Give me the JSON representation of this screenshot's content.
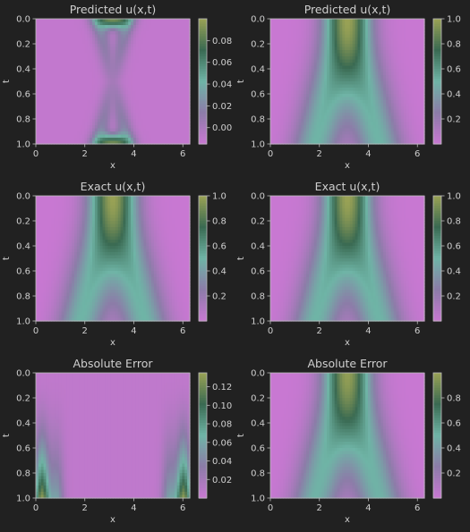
{
  "figure": {
    "background": "#212121",
    "text_color": "#cfcfcf"
  },
  "colormap": [
    "#c878d2",
    "#8c7ca8",
    "#6fb4a6",
    "#3a6a52",
    "#9aa255"
  ],
  "chart_data": [
    {
      "type": "heatmap",
      "title": "Predicted u(x,t)",
      "xlabel": "x",
      "ylabel": "t",
      "xlim": [
        0,
        6.2832
      ],
      "ylim": [
        0,
        1.0
      ],
      "y_inverted": true,
      "xticks": [
        "0",
        "2",
        "4",
        "6"
      ],
      "xtick_values": [
        0,
        2,
        4,
        6
      ],
      "yticks": [
        "0.0",
        "0.2",
        "0.4",
        "0.6",
        "0.8",
        "1.0"
      ],
      "ytick_values": [
        0,
        0.2,
        0.4,
        0.6,
        0.8,
        1.0
      ],
      "colorbar": {
        "vmin": -0.015,
        "vmax": 0.1,
        "ticks": [
          "0.00",
          "0.02",
          "0.04",
          "0.06",
          "0.08"
        ],
        "tick_values": [
          0,
          0.02,
          0.04,
          0.06,
          0.08
        ]
      },
      "field": "predicted_small"
    },
    {
      "type": "heatmap",
      "title": "Predicted u(x,t)",
      "xlabel": "x",
      "ylabel": "t",
      "xlim": [
        0,
        6.2832
      ],
      "ylim": [
        0,
        1.0
      ],
      "y_inverted": true,
      "xticks": [
        "0",
        "2",
        "4",
        "6"
      ],
      "xtick_values": [
        0,
        2,
        4,
        6
      ],
      "yticks": [
        "0.0",
        "0.2",
        "0.4",
        "0.6",
        "0.8",
        "1.0"
      ],
      "ytick_values": [
        0,
        0.2,
        0.4,
        0.6,
        0.8,
        1.0
      ],
      "colorbar": {
        "vmin": 0.0,
        "vmax": 1.0,
        "ticks": [
          "0.2",
          "0.4",
          "0.6",
          "0.8",
          "1.0"
        ],
        "tick_values": [
          0.2,
          0.4,
          0.6,
          0.8,
          1.0
        ]
      },
      "field": "gaussian_split"
    },
    {
      "type": "heatmap",
      "title": "Exact u(x,t)",
      "xlabel": "x",
      "ylabel": "t",
      "xlim": [
        0,
        6.2832
      ],
      "ylim": [
        0,
        1.0
      ],
      "y_inverted": true,
      "xticks": [
        "0",
        "2",
        "4",
        "6"
      ],
      "xtick_values": [
        0,
        2,
        4,
        6
      ],
      "yticks": [
        "0.0",
        "0.2",
        "0.4",
        "0.6",
        "0.8",
        "1.0"
      ],
      "ytick_values": [
        0,
        0.2,
        0.4,
        0.6,
        0.8,
        1.0
      ],
      "colorbar": {
        "vmin": 0.0,
        "vmax": 1.0,
        "ticks": [
          "0.2",
          "0.4",
          "0.6",
          "0.8",
          "1.0"
        ],
        "tick_values": [
          0.2,
          0.4,
          0.6,
          0.8,
          1.0
        ]
      },
      "field": "gaussian_split"
    },
    {
      "type": "heatmap",
      "title": "Exact u(x,t)",
      "xlabel": "x",
      "ylabel": "t",
      "xlim": [
        0,
        6.2832
      ],
      "ylim": [
        0,
        1.0
      ],
      "y_inverted": true,
      "xticks": [
        "0",
        "2",
        "4",
        "6"
      ],
      "xtick_values": [
        0,
        2,
        4,
        6
      ],
      "yticks": [
        "0.0",
        "0.2",
        "0.4",
        "0.6",
        "0.8",
        "1.0"
      ],
      "ytick_values": [
        0,
        0.2,
        0.4,
        0.6,
        0.8,
        1.0
      ],
      "colorbar": {
        "vmin": 0.0,
        "vmax": 1.0,
        "ticks": [
          "0.2",
          "0.4",
          "0.6",
          "0.8",
          "1.0"
        ],
        "tick_values": [
          0.2,
          0.4,
          0.6,
          0.8,
          1.0
        ]
      },
      "field": "gaussian_split"
    },
    {
      "type": "heatmap",
      "title": "Absolute Error",
      "xlabel": "x",
      "ylabel": "t",
      "xlim": [
        0,
        6.2832
      ],
      "ylim": [
        0,
        1.0
      ],
      "y_inverted": true,
      "xticks": [
        "0",
        "2",
        "4",
        "6"
      ],
      "xtick_values": [
        0,
        2,
        4,
        6
      ],
      "yticks": [
        "0.0",
        "0.2",
        "0.4",
        "0.6",
        "0.8",
        "1.0"
      ],
      "ytick_values": [
        0,
        0.2,
        0.4,
        0.6,
        0.8,
        1.0
      ],
      "colorbar": {
        "vmin": 0.0,
        "vmax": 0.135,
        "ticks": [
          "0.02",
          "0.04",
          "0.06",
          "0.08",
          "0.10",
          "0.12"
        ],
        "tick_values": [
          0.02,
          0.04,
          0.06,
          0.08,
          0.1,
          0.12
        ]
      },
      "field": "error_small"
    },
    {
      "type": "heatmap",
      "title": "Absolute Error",
      "xlabel": "x",
      "ylabel": "t",
      "xlim": [
        0,
        6.2832
      ],
      "ylim": [
        0,
        1.0
      ],
      "y_inverted": true,
      "xticks": [
        "0",
        "2",
        "4",
        "6"
      ],
      "xtick_values": [
        0,
        2,
        4,
        6
      ],
      "yticks": [
        "0.0",
        "0.2",
        "0.4",
        "0.6",
        "0.8",
        "1.0"
      ],
      "ytick_values": [
        0,
        0.2,
        0.4,
        0.6,
        0.8,
        1.0
      ],
      "colorbar": {
        "vmin": 0.0,
        "vmax": 1.0,
        "ticks": [
          "0.2",
          "0.4",
          "0.6",
          "0.8"
        ],
        "tick_values": [
          0.2,
          0.4,
          0.6,
          0.8
        ]
      },
      "field": "gaussian_split_error"
    }
  ]
}
